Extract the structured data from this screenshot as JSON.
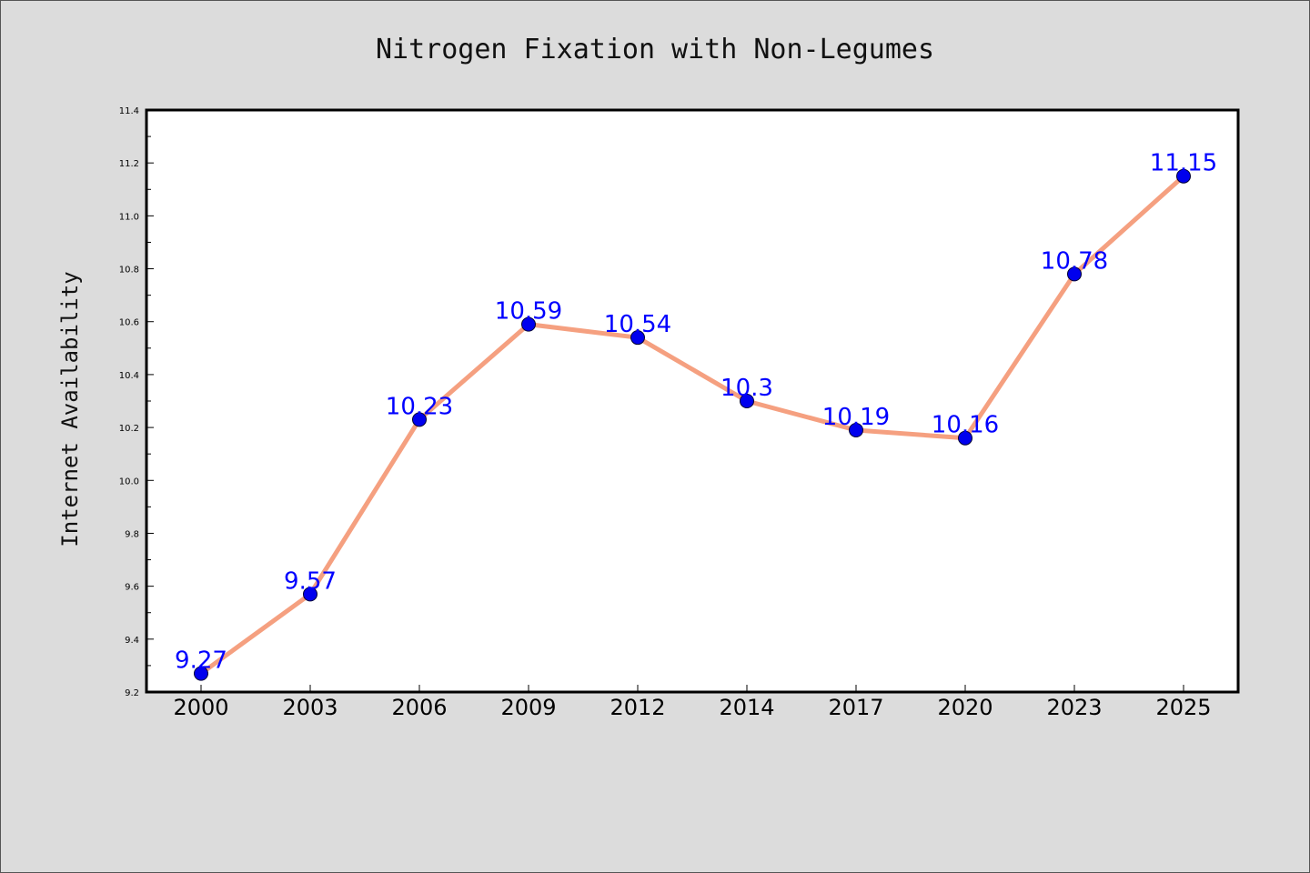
{
  "chart_data": {
    "type": "line",
    "title": "Nitrogen Fixation with Non-Legumes",
    "xlabel": "",
    "ylabel": "Internet Availability",
    "categories": [
      "2000",
      "2003",
      "2006",
      "2009",
      "2012",
      "2014",
      "2017",
      "2020",
      "2023",
      "2025"
    ],
    "series": [
      {
        "values": [
          9.27,
          9.57,
          10.23,
          10.59,
          10.54,
          10.3,
          10.19,
          10.16,
          10.78,
          11.15
        ],
        "data_labels": [
          "9.27",
          "9.57",
          "10.23",
          "10.59",
          "10.54",
          "10.3",
          "10.19",
          "10.16",
          "10.78",
          "11.15"
        ],
        "line_color": "#f5a080",
        "marker_color": "#0000ee",
        "label_color": "#0000ff"
      }
    ],
    "ylim": [
      9.2,
      11.4
    ],
    "yticks": [
      "9.2",
      "9.4",
      "9.6",
      "9.8",
      "10.0",
      "10.2",
      "10.4",
      "10.6",
      "10.8",
      "11.0",
      "11.2",
      "11.4"
    ],
    "grid": false,
    "legend": "none",
    "background": "#dcdcdc",
    "plot_background": "#ffffff"
  }
}
